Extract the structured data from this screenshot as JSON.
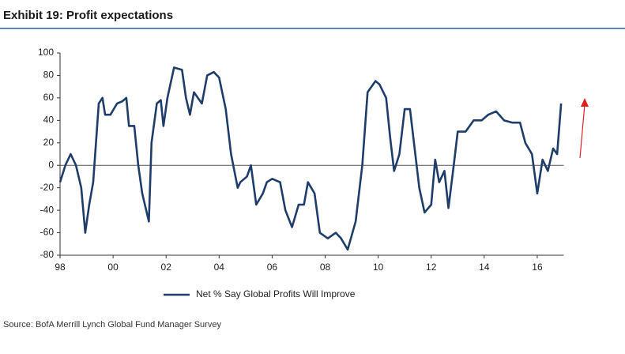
{
  "chart_data": {
    "type": "line",
    "title": "Exhibit 19: Profit expectations",
    "source": "Source: BofA Merrill Lynch Global Fund Manager Survey",
    "xlim": [
      1998,
      2017
    ],
    "ylim": [
      -80,
      100
    ],
    "xticks": [
      {
        "value": 1998,
        "label": "98"
      },
      {
        "value": 2000,
        "label": "00"
      },
      {
        "value": 2002,
        "label": "02"
      },
      {
        "value": 2004,
        "label": "04"
      },
      {
        "value": 2006,
        "label": "06"
      },
      {
        "value": 2008,
        "label": "08"
      },
      {
        "value": 2010,
        "label": "10"
      },
      {
        "value": 2012,
        "label": "12"
      },
      {
        "value": 2014,
        "label": "14"
      },
      {
        "value": 2016,
        "label": "16"
      }
    ],
    "yticks": [
      -80,
      -60,
      -40,
      -20,
      0,
      20,
      40,
      60,
      80,
      100
    ],
    "legend": "bottom",
    "series": [
      {
        "name": "Net % Say Global Profits Will Improve",
        "color": "#1f3d6b",
        "x": [
          1998.0,
          1998.2,
          1998.4,
          1998.6,
          1998.8,
          1998.95,
          1999.1,
          1999.25,
          1999.46,
          1999.6,
          1999.7,
          1999.9,
          2000.15,
          2000.35,
          2000.5,
          2000.6,
          2000.8,
          2000.95,
          2001.1,
          2001.35,
          2001.45,
          2001.65,
          2001.8,
          2001.9,
          2002.05,
          2002.3,
          2002.6,
          2002.75,
          2002.9,
          2003.05,
          2003.2,
          2003.35,
          2003.55,
          2003.8,
          2004.0,
          2004.25,
          2004.45,
          2004.7,
          2004.8,
          2005.05,
          2005.2,
          2005.4,
          2005.65,
          2005.8,
          2006.0,
          2006.3,
          2006.5,
          2006.75,
          2007.0,
          2007.2,
          2007.35,
          2007.6,
          2007.8,
          2008.1,
          2008.4,
          2008.6,
          2008.85,
          2009.15,
          2009.4,
          2009.6,
          2009.9,
          2010.05,
          2010.3,
          2010.45,
          2010.6,
          2010.8,
          2011.0,
          2011.2,
          2011.4,
          2011.55,
          2011.75,
          2012.0,
          2012.15,
          2012.3,
          2012.5,
          2012.65,
          2012.85,
          2013.0,
          2013.3,
          2013.6,
          2013.9,
          2014.15,
          2014.45,
          2014.75,
          2015.05,
          2015.35,
          2015.55,
          2015.8,
          2016.0,
          2016.2,
          2016.4,
          2016.6,
          2016.75,
          2016.9
        ],
        "values": [
          -15,
          0,
          10,
          0,
          -20,
          -60,
          -35,
          -15,
          55,
          60,
          45,
          45,
          55,
          57,
          60,
          35,
          35,
          0,
          -25,
          -50,
          20,
          55,
          58,
          35,
          60,
          87,
          85,
          60,
          45,
          65,
          60,
          55,
          80,
          83,
          78,
          50,
          10,
          -20,
          -15,
          -10,
          0,
          -35,
          -25,
          -15,
          -12,
          -15,
          -40,
          -55,
          -35,
          -35,
          -15,
          -25,
          -60,
          -65,
          -60,
          -65,
          -75,
          -50,
          0,
          65,
          75,
          72,
          60,
          25,
          -5,
          10,
          50,
          50,
          10,
          -20,
          -42,
          -35,
          5,
          -15,
          -5,
          -38,
          0,
          30,
          30,
          40,
          40,
          45,
          48,
          40,
          38,
          38,
          20,
          10,
          -25,
          5,
          -5,
          15,
          10,
          55
        ]
      }
    ]
  }
}
